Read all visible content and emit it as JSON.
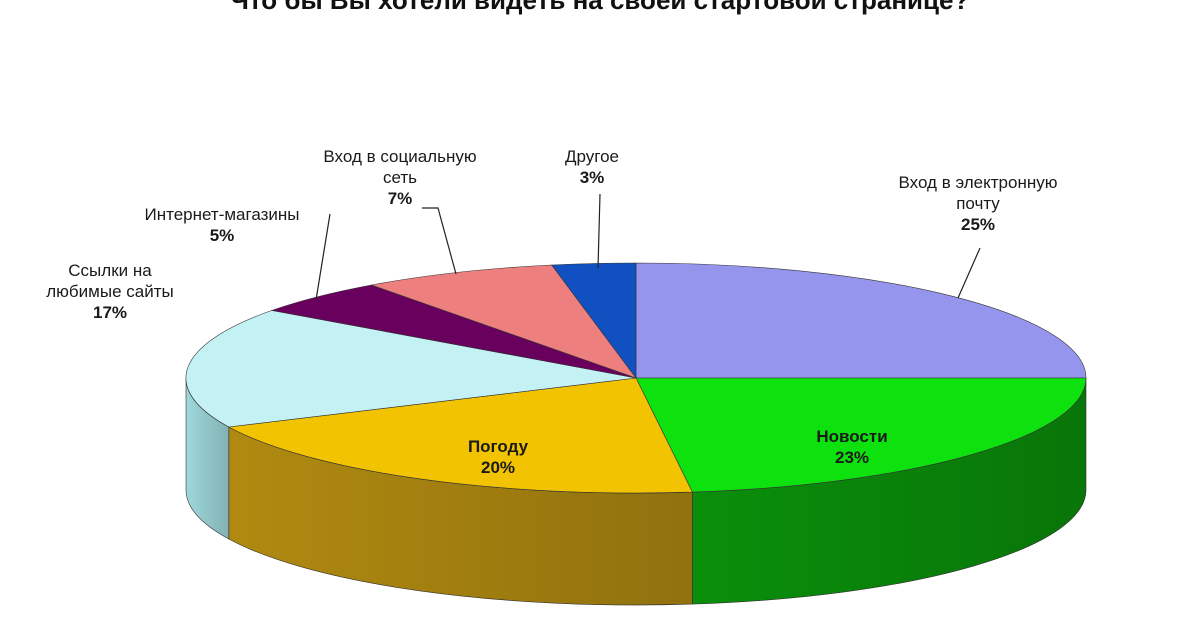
{
  "chart_data": {
    "type": "pie",
    "title": "Что бы Вы хотели видеть на своей стартовой странице?",
    "unit": "%",
    "slices": [
      {
        "label_lines": [
          "Вход в электронную",
          "почту"
        ],
        "percent_label": "25%",
        "value": 25,
        "color": "#9595ee",
        "side_color": "#6a6ac8"
      },
      {
        "label_lines": [
          "Новости"
        ],
        "percent_label": "23%",
        "value": 23,
        "color": "#0ee20e",
        "side_color": "#0a8f0a"
      },
      {
        "label_lines": [
          "Погоду"
        ],
        "percent_label": "20%",
        "value": 20,
        "color": "#f2c300",
        "side_color": "#b08a10"
      },
      {
        "label_lines": [
          "Ссылки на",
          "любимые сайты"
        ],
        "percent_label": "17%",
        "value": 17,
        "color": "#c4f2f4",
        "side_color": "#9ed8db"
      },
      {
        "label_lines": [
          "Интернет-магазины"
        ],
        "percent_label": "5%",
        "value": 5,
        "color": "#6a005e",
        "side_color": "#420040"
      },
      {
        "label_lines": [
          "Вход в социальную",
          "сеть"
        ],
        "percent_label": "7%",
        "value": 7,
        "color": "#ee7f7f",
        "side_color": "#b85555"
      },
      {
        "label_lines": [
          "Другое"
        ],
        "percent_label": "3%",
        "value": 3,
        "color": "#1050c0",
        "side_color": "#0a3a8a"
      }
    ]
  }
}
